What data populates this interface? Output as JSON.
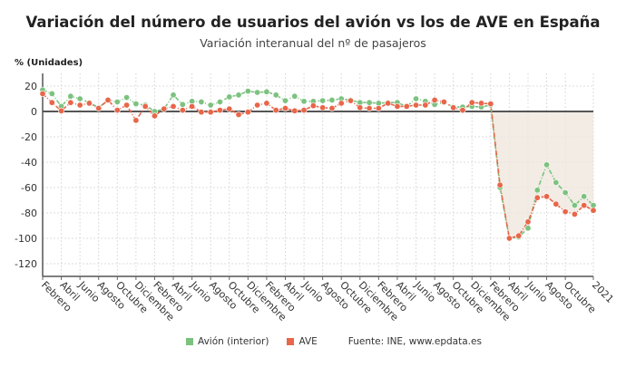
{
  "title": "Variación del número de usuarios del avión vs los de AVE en España",
  "subtitle": "Variación interanual del nº de pasajeros",
  "source": "Fuente: INE, www.epdata.es",
  "colors": {
    "avion": "#7cc27f",
    "ave": "#e8664a",
    "shade": "#efe7df"
  },
  "chart_data": {
    "type": "line",
    "title": "Variación del número de usuarios del avión vs los de AVE en España",
    "subtitle": "Variación interanual del nº de pasajeros",
    "ylabel": "% (Unidades)",
    "xlabel": "",
    "ylim": [
      -130,
      30
    ],
    "yticks": [
      20,
      0,
      -20,
      -40,
      -60,
      -80,
      -100,
      -120
    ],
    "x_start": "2016-02",
    "x_end": "2021-01",
    "xtick_labels": [
      "Febrero",
      "Abril",
      "Junio",
      "Agosto",
      "Octubre",
      "Diciembre",
      "Febrero",
      "Abril",
      "Junio",
      "Agosto",
      "Octubre",
      "Diciembre",
      "Febrero",
      "Abril",
      "Junio",
      "Agosto",
      "Octubre",
      "Diciembre",
      "Febrero",
      "Abril",
      "Junio",
      "Agosto",
      "Octubre",
      "Diciembre",
      "Febrero",
      "Abril",
      "Junio",
      "Agosto",
      "Octubre",
      "2021"
    ],
    "grid": true,
    "legend_placement": "bottom",
    "series": [
      {
        "name": "Avión (interior)",
        "values": [
          17,
          14,
          4,
          12,
          10,
          7,
          3,
          9,
          7.5,
          11,
          6,
          5,
          0,
          2,
          13,
          5.5,
          8,
          7.5,
          5,
          7.5,
          11.5,
          13,
          16,
          15,
          15.5,
          13,
          8.5,
          12,
          8,
          8,
          8.5,
          9,
          10,
          9,
          7,
          7,
          6.5,
          7,
          7,
          4,
          10,
          8,
          5.5,
          7,
          3.5,
          3.5,
          4,
          3.5,
          5,
          -60,
          -100,
          -99,
          -92,
          -62,
          -42,
          -56,
          -64,
          -74,
          -67,
          -74
        ]
      },
      {
        "name": "AVE",
        "values": [
          14,
          7,
          0.5,
          7,
          5,
          6.5,
          2.5,
          9,
          1,
          5,
          -7,
          4,
          -3.5,
          2,
          4,
          1,
          4,
          -0.5,
          -0.5,
          1,
          2,
          -2.5,
          -0.5,
          5,
          6.5,
          1,
          2.5,
          0.5,
          1,
          4.5,
          3,
          2.5,
          6.5,
          8.5,
          3,
          2.5,
          2.5,
          6.5,
          4,
          4,
          5,
          5,
          9,
          7.5,
          3,
          1,
          7,
          6.5,
          6,
          -58,
          -100,
          -98,
          -87,
          -68,
          -67,
          -73,
          -79,
          -81,
          -74,
          -78
        ]
      }
    ]
  }
}
